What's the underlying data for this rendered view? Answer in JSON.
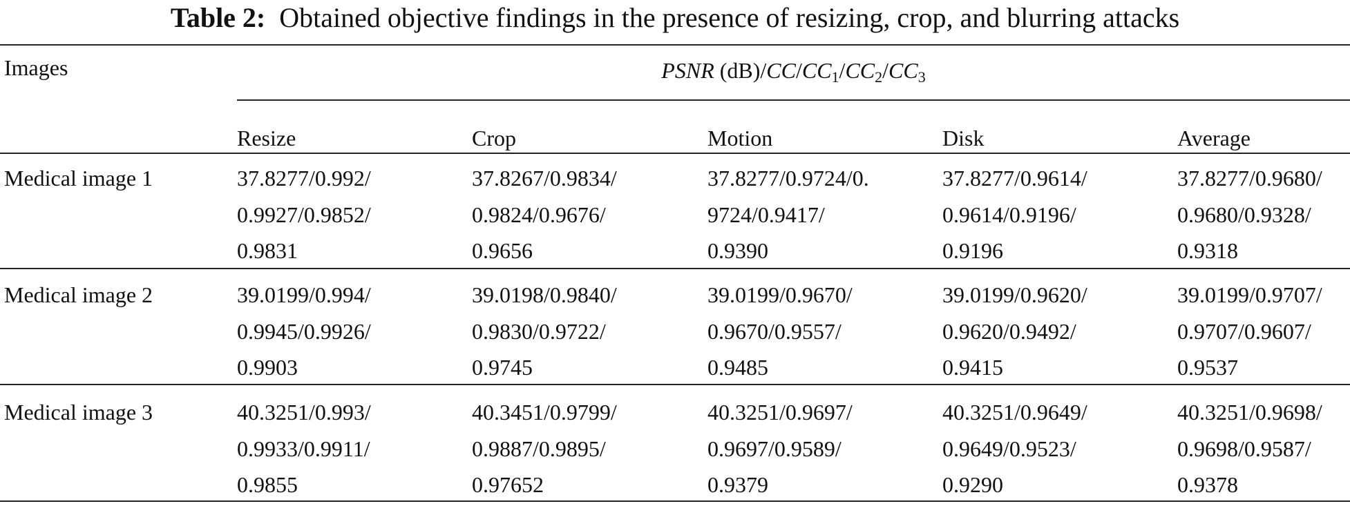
{
  "caption": {
    "label": "Table 2:",
    "text": "Obtained objective findings in the presence of resizing, crop, and blurring attacks"
  },
  "table": {
    "row_header": "Images",
    "metric_header": [
      {
        "text": "PSNR",
        "italic": true
      },
      {
        "text": " (dB)/"
      },
      {
        "text": "CC",
        "italic": true
      },
      {
        "text": "/"
      },
      {
        "text": "CC",
        "italic": true
      },
      {
        "text": "1",
        "sub": true
      },
      {
        "text": "/"
      },
      {
        "text": "CC",
        "italic": true
      },
      {
        "text": "2",
        "sub": true
      },
      {
        "text": "/"
      },
      {
        "text": "CC",
        "italic": true
      },
      {
        "text": "3",
        "sub": true
      }
    ],
    "columns": [
      "Resize",
      "Crop",
      "Motion",
      "Disk",
      "Average"
    ],
    "rows": [
      {
        "image": "Medical image 1",
        "cells": [
          [
            "37.8277/0.992/",
            "0.9927/0.9852/",
            "0.9831"
          ],
          [
            "37.8267/0.9834/",
            "0.9824/0.9676/",
            "0.9656"
          ],
          [
            "37.8277/0.9724/0.",
            "9724/0.9417/",
            "0.9390"
          ],
          [
            "37.8277/0.9614/",
            "0.9614/0.9196/",
            "0.9196"
          ],
          [
            "37.8277/0.9680/",
            "0.9680/0.9328/",
            "0.9318"
          ]
        ]
      },
      {
        "image": "Medical image 2",
        "cells": [
          [
            "39.0199/0.994/",
            "0.9945/0.9926/",
            "0.9903"
          ],
          [
            "39.0198/0.9840/",
            "0.9830/0.9722/",
            "0.9745"
          ],
          [
            "39.0199/0.9670/",
            "0.9670/0.9557/",
            "0.9485"
          ],
          [
            "39.0199/0.9620/",
            "0.9620/0.9492/",
            "0.9415"
          ],
          [
            "39.0199/0.9707/",
            "0.9707/0.9607/",
            "0.9537"
          ]
        ]
      },
      {
        "image": "Medical image 3",
        "cells": [
          [
            "40.3251/0.993/",
            "0.9933/0.9911/",
            "0.9855"
          ],
          [
            "40.3451/0.9799/",
            "0.9887/0.9895/",
            "0.97652"
          ],
          [
            "40.3251/0.9697/",
            "0.9697/0.9589/",
            "0.9379"
          ],
          [
            "40.3251/0.9649/",
            "0.9649/0.9523/",
            "0.9290"
          ],
          [
            "40.3251/0.9698/",
            "0.9698/0.9587/",
            "0.9378"
          ]
        ]
      }
    ]
  }
}
